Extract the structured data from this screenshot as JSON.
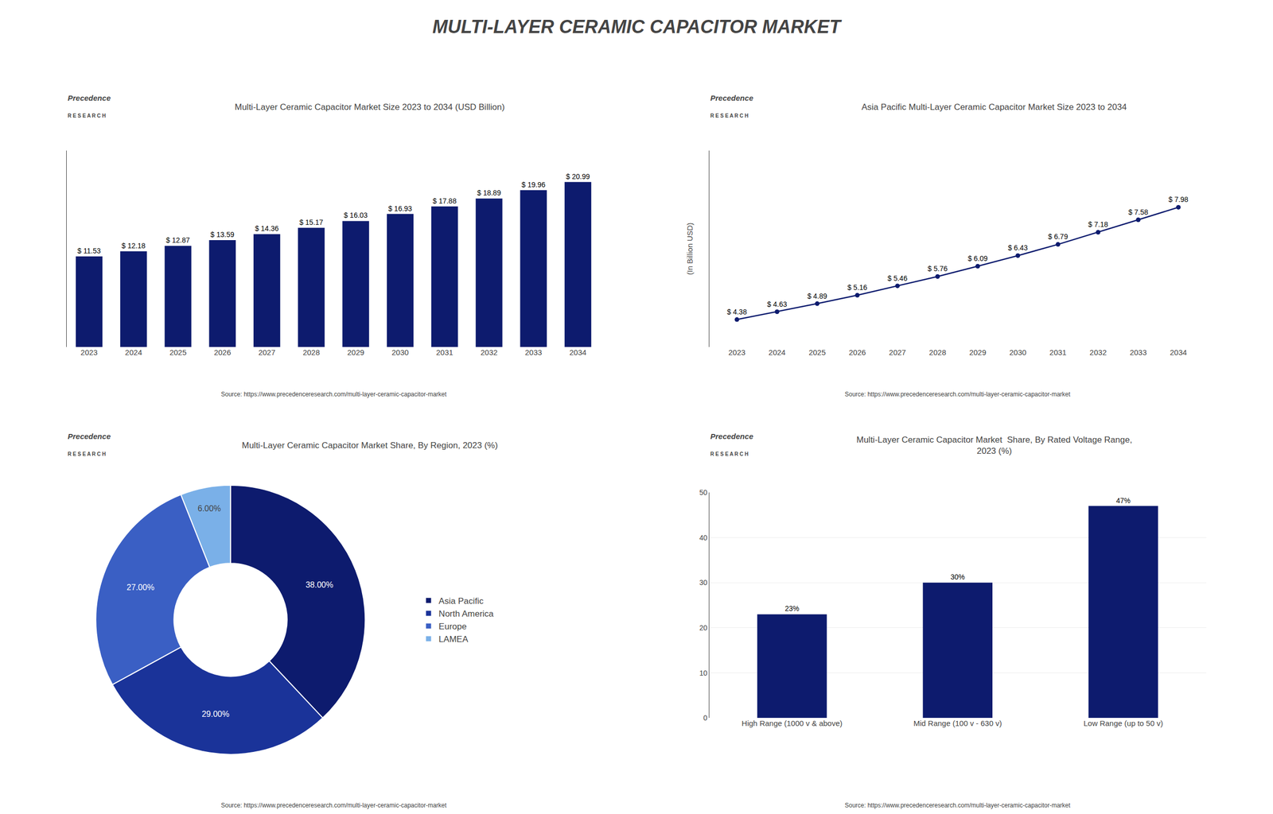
{
  "title": "MULTI-LAYER CERAMIC CAPACITOR MARKET",
  "chart_data": [
    {
      "type": "bar",
      "title": "Multi-Layer Ceramic Capacitor Market Size 2023 to 2034 (USD Billion)",
      "annotations": [
        "Precedence",
        "R E S E A R C H",
        "Source: https://www.precedenceresearch.com/multi-layer-ceramic-capacitor-market"
      ],
      "categories": [
        "2023",
        "2024",
        "2025",
        "2026",
        "2027",
        "2028",
        "2029",
        "2030",
        "2031",
        "2032",
        "2033",
        "2034"
      ],
      "values": [
        11.53,
        12.18,
        12.87,
        13.59,
        14.36,
        15.17,
        16.03,
        16.93,
        17.88,
        18.89,
        19.96,
        20.99
      ],
      "value_labels": [
        "$ 11.53",
        "$ 12.18",
        "$ 12.87",
        "$ 13.59",
        "$ 14.36",
        "$ 15.17",
        "$ 16.03",
        "$ 16.93",
        "$ 17.88",
        "$ 18.89",
        "$ 19.96",
        "$ 20.99"
      ],
      "data_labels": true,
      "color": "#0d1b6e",
      "ylim": [
        0,
        25
      ],
      "tick_labels": "x",
      "grid": false
    },
    {
      "type": "line",
      "title": "Asia Pacific Multi-Layer Ceramic Capacitor Market Size 2023 to 2034",
      "annotations": [
        "Precedence",
        "R E S E A R C H",
        "Source: https://www.precedenceresearch.com/multi-layer-ceramic-capacitor-market"
      ],
      "ylabel": "(In Billion USD)",
      "categories": [
        "2023",
        "2024",
        "2025",
        "2026",
        "2027",
        "2028",
        "2029",
        "2030",
        "2031",
        "2032",
        "2033",
        "2034"
      ],
      "values": [
        4.38,
        4.63,
        4.89,
        5.16,
        5.46,
        5.76,
        6.09,
        6.43,
        6.79,
        7.18,
        7.58,
        7.98
      ],
      "value_labels": [
        "$ 4.38",
        "$ 4.63",
        "$ 4.89",
        "$ 5.16",
        "$ 5.46",
        "$ 5.76",
        "$ 6.09",
        "$ 6.43",
        "$ 6.79",
        "$ 7.18",
        "$ 7.58",
        "$ 7.98"
      ],
      "data_labels": true,
      "color": "#0d1b6e",
      "marker": "circle",
      "line_style": "solid",
      "ylim": [
        3.5,
        9.8
      ],
      "tick_labels": "x",
      "grid": false
    },
    {
      "type": "pie",
      "title": "Multi-Layer Ceramic Capacitor Market Share, By Region, 2023 (%)",
      "annotations": [
        "Precedence",
        "R E S E A R C H",
        "Source: https://www.precedenceresearch.com/multi-layer-ceramic-capacitor-market"
      ],
      "categories": [
        "Asia Pacific",
        "North America",
        "Europe",
        "LAMEA"
      ],
      "values": [
        38.0,
        29.0,
        27.0,
        6.0
      ],
      "value_labels": [
        "38.00%",
        "29.00%",
        "27.00%",
        "6.00%"
      ],
      "data_labels": true,
      "colors": [
        "#0d1b6e",
        "#1a3399",
        "#3a5fc4",
        "#7ab0e8"
      ],
      "legend": "right"
    },
    {
      "type": "bar",
      "title": "Multi-Layer Ceramic Capacitor Market  Share, By Rated Voltage Range,",
      "subtitle": "2023 (%)",
      "annotations": [
        "Precedence",
        "R E S E A R C H",
        "Source: https://www.precedenceresearch.com/multi-layer-ceramic-capacitor-market"
      ],
      "categories": [
        "High Range (1000 v & above)",
        "Mid Range (100 v - 630 v)",
        "Low Range (up to 50 v)"
      ],
      "values": [
        23,
        30,
        47
      ],
      "value_labels": [
        "23%",
        "30%",
        "47%"
      ],
      "data_labels": true,
      "color": "#0d1b6e",
      "ylim": [
        0,
        50
      ],
      "yticks": [
        0,
        10,
        20,
        30,
        40,
        50
      ],
      "grid": true
    }
  ]
}
